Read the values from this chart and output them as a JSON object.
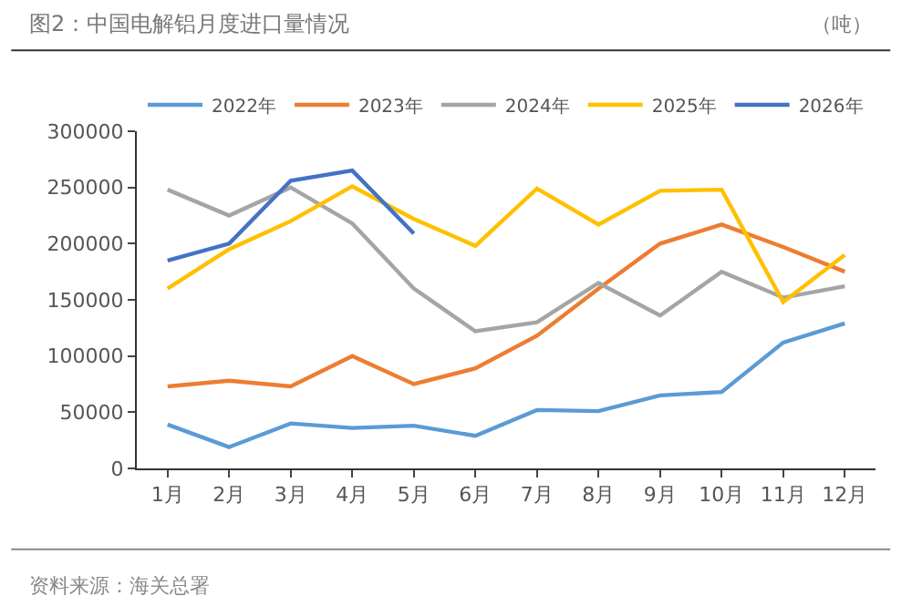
{
  "chart_data": {
    "type": "line",
    "title": "图2：中国电解铝月度进口量情况",
    "ylabel": "（吨）",
    "annotations": [
      "资料来源：海关总署"
    ],
    "categories": [
      "1月",
      "2月",
      "3月",
      "4月",
      "5月",
      "6月",
      "7月",
      "8月",
      "9月",
      "10月",
      "11月",
      "12月"
    ],
    "ylim": [
      0,
      300000
    ],
    "yticks": [
      0,
      50000,
      100000,
      150000,
      200000,
      250000,
      300000
    ],
    "grid": false,
    "legend": "top",
    "marker": "none",
    "line_style": "solid",
    "series": [
      {
        "name": "2022年",
        "color": "#5b9bd5",
        "values": [
          39000,
          19000,
          40000,
          36000,
          38000,
          29000,
          52000,
          51000,
          65000,
          68000,
          112000,
          129000
        ]
      },
      {
        "name": "2023年",
        "color": "#ed7d31",
        "values": [
          73000,
          78000,
          73000,
          100000,
          75000,
          89000,
          118000,
          160000,
          200000,
          217000,
          197000,
          175000
        ]
      },
      {
        "name": "2024年",
        "color": "#a5a5a5",
        "values": [
          248000,
          225000,
          250000,
          218000,
          160000,
          122000,
          130000,
          165000,
          136000,
          175000,
          152000,
          162000
        ]
      },
      {
        "name": "2025年",
        "color": "#ffc000",
        "values": [
          160000,
          195000,
          220000,
          251000,
          222000,
          198000,
          249000,
          217000,
          247000,
          248000,
          148000,
          190000
        ]
      },
      {
        "name": "2026年",
        "color": "#4472c4",
        "values": [
          185000,
          200000,
          256000,
          265000,
          209000,
          null,
          null,
          null,
          null,
          null,
          null,
          null
        ]
      }
    ]
  }
}
